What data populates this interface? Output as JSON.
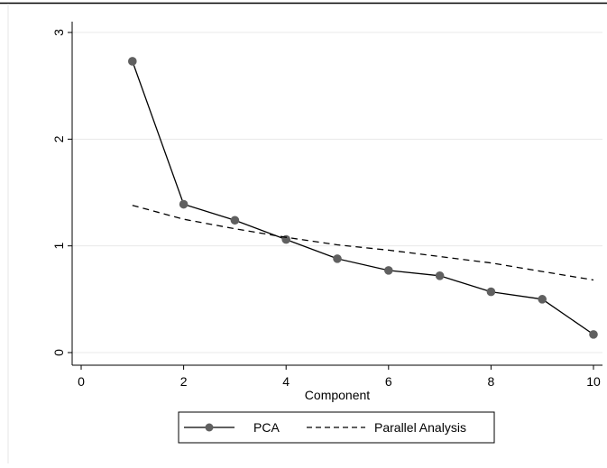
{
  "chart_data": {
    "type": "line",
    "title": "",
    "xlabel": "Component",
    "ylabel": "",
    "xlim": [
      0,
      10
    ],
    "ylim": [
      0,
      3
    ],
    "x_ticks": [
      "0",
      "2",
      "4",
      "6",
      "8",
      "10"
    ],
    "y_ticks": [
      "0",
      "1",
      "2",
      "3"
    ],
    "grid": "horizontal",
    "legend": "bottom-center",
    "series": [
      {
        "name": "PCA",
        "style": "solid-with-markers",
        "color": "#000000",
        "marker_color": "#606060",
        "x": [
          1,
          2,
          3,
          4,
          5,
          6,
          7,
          8,
          9,
          10
        ],
        "y": [
          2.73,
          1.39,
          1.24,
          1.06,
          0.88,
          0.77,
          0.72,
          0.57,
          0.5,
          0.17
        ]
      },
      {
        "name": "Parallel Analysis",
        "style": "dashed",
        "color": "#000000",
        "x": [
          1,
          2,
          3,
          4,
          5,
          6,
          7,
          8,
          9,
          10
        ],
        "y": [
          1.38,
          1.25,
          1.16,
          1.08,
          1.01,
          0.96,
          0.9,
          0.84,
          0.76,
          0.68
        ]
      }
    ]
  }
}
